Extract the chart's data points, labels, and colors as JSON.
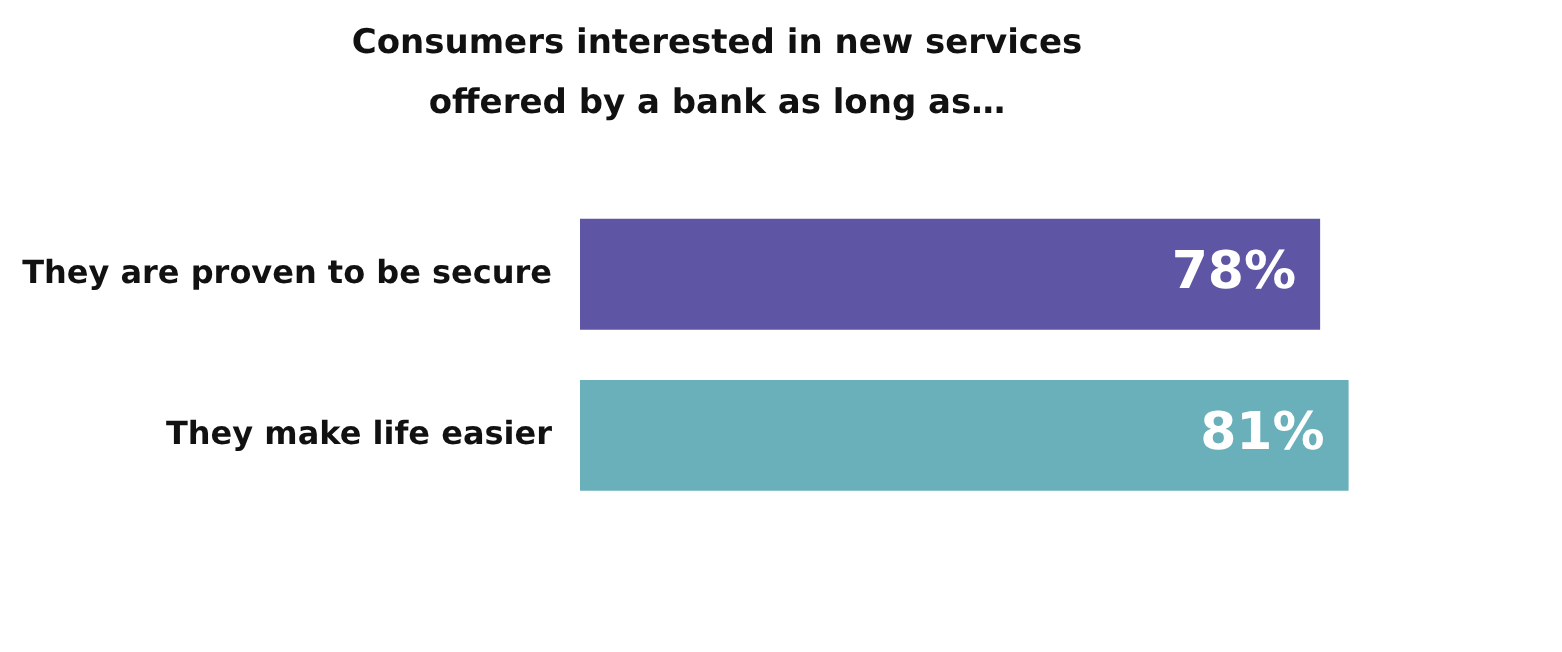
{
  "chart_data": {
    "type": "bar",
    "orientation": "horizontal",
    "title": "Consumers interested in new services\noffered by a bank as long as…",
    "categories": [
      "They are proven to be secure",
      "They make life easier"
    ],
    "values": [
      78,
      81
    ],
    "colors": [
      "#5e56a5",
      "#6ab0bb"
    ],
    "value_labels": [
      "78%",
      "81%"
    ],
    "tick_labels": "y"
  }
}
